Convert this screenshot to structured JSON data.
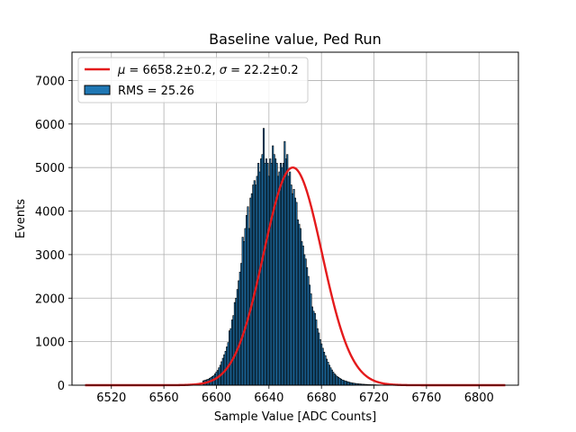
{
  "chart_data": {
    "type": "bar",
    "title": "Baseline value, Ped Run",
    "xlabel": "Sample Value [ADC Counts]",
    "ylabel": "Events",
    "xlim": [
      6490,
      6830
    ],
    "ylim": [
      0,
      7650
    ],
    "x_ticks": [
      6520,
      6560,
      6600,
      6640,
      6680,
      6720,
      6760,
      6800
    ],
    "y_ticks": [
      0,
      1000,
      2000,
      3000,
      4000,
      5000,
      6000,
      7000
    ],
    "grid": true,
    "legend_position": "upper-left",
    "colors": {
      "histogram_fill": "#1f77b4",
      "histogram_edge": "#000000",
      "fit_line": "#e41a1c"
    },
    "series": [
      {
        "name": "RMS = 25.26",
        "kind": "histogram",
        "bin_width": 1,
        "x": [
          6590,
          6591,
          6592,
          6593,
          6594,
          6595,
          6596,
          6597,
          6598,
          6599,
          6600,
          6601,
          6602,
          6603,
          6604,
          6605,
          6606,
          6607,
          6608,
          6609,
          6610,
          6611,
          6612,
          6613,
          6614,
          6615,
          6616,
          6617,
          6618,
          6619,
          6620,
          6621,
          6622,
          6623,
          6624,
          6625,
          6626,
          6627,
          6628,
          6629,
          6630,
          6631,
          6632,
          6633,
          6634,
          6635,
          6636,
          6637,
          6638,
          6639,
          6640,
          6641,
          6642,
          6643,
          6644,
          6645,
          6646,
          6647,
          6648,
          6649,
          6650,
          6651,
          6652,
          6653,
          6654,
          6655,
          6656,
          6657,
          6658,
          6659,
          6660,
          6661,
          6662,
          6663,
          6664,
          6665,
          6666,
          6667,
          6668,
          6669,
          6670,
          6671,
          6672,
          6673,
          6674,
          6675,
          6676,
          6677,
          6678,
          6679,
          6680,
          6681,
          6682,
          6683,
          6684,
          6685,
          6686,
          6687,
          6688,
          6689,
          6690,
          6691,
          6692,
          6693,
          6694,
          6695,
          6696,
          6697,
          6698,
          6699,
          6700,
          6701,
          6702,
          6703,
          6704,
          6705,
          6706,
          6707,
          6708,
          6709,
          6710,
          6711,
          6712,
          6713,
          6714,
          6715,
          6716,
          6717,
          6718,
          6719,
          6720,
          6721,
          6722,
          6723,
          6724,
          6725,
          6726,
          6727,
          6728,
          6729,
          6730
        ],
        "values": [
          100,
          110,
          120,
          130,
          140,
          160,
          180,
          200,
          220,
          260,
          300,
          340,
          400,
          460,
          540,
          620,
          700,
          780,
          880,
          980,
          1250,
          1300,
          1500,
          1600,
          1900,
          2000,
          2200,
          2400,
          2600,
          2800,
          3400,
          3300,
          3600,
          3900,
          4100,
          3600,
          4300,
          4400,
          4600,
          4700,
          4600,
          4800,
          5100,
          4900,
          5200,
          5300,
          5900,
          5100,
          5200,
          5100,
          4800,
          5200,
          5100,
          5500,
          5300,
          5200,
          5100,
          4800,
          4900,
          5100,
          5000,
          5100,
          5600,
          5200,
          5300,
          4800,
          4900,
          4600,
          4400,
          4500,
          4300,
          4200,
          3800,
          3700,
          3600,
          3300,
          3200,
          3000,
          2900,
          2700,
          2500,
          2300,
          2100,
          1800,
          1700,
          1650,
          1500,
          1300,
          1200,
          1050,
          950,
          850,
          760,
          680,
          600,
          530,
          460,
          400,
          350,
          300,
          260,
          230,
          200,
          180,
          160,
          140,
          120,
          110,
          100,
          90,
          80,
          70,
          62,
          55,
          50,
          45,
          40,
          36,
          33,
          30,
          27,
          24,
          22,
          20,
          18,
          16,
          14,
          13,
          12,
          11,
          10,
          9,
          8,
          7,
          6,
          5,
          5,
          4,
          4,
          3,
          3
        ],
        "tails_low": {
          "x_from": 6500,
          "x_to": 6589,
          "note": ""
        },
        "tails_high": {
          "x_from": 6731,
          "x_to": 6820,
          "note": ""
        }
      },
      {
        "name": "μ = 6658.2±0.2, σ = 22.2±0.2",
        "kind": "gaussian_fit",
        "mu": 6658.2,
        "sigma": 22.2,
        "amplitude": 5000,
        "x_range": [
          6500,
          6820
        ]
      }
    ],
    "legend": [
      {
        "kind": "line",
        "label": "μ = 6658.2±0.2, σ = 22.2±0.2",
        "label_parts": [
          "μ",
          " = 6658.2±0.2, ",
          "σ",
          " = 22.2±0.2"
        ]
      },
      {
        "kind": "patch",
        "label": "RMS = 25.26"
      }
    ]
  }
}
